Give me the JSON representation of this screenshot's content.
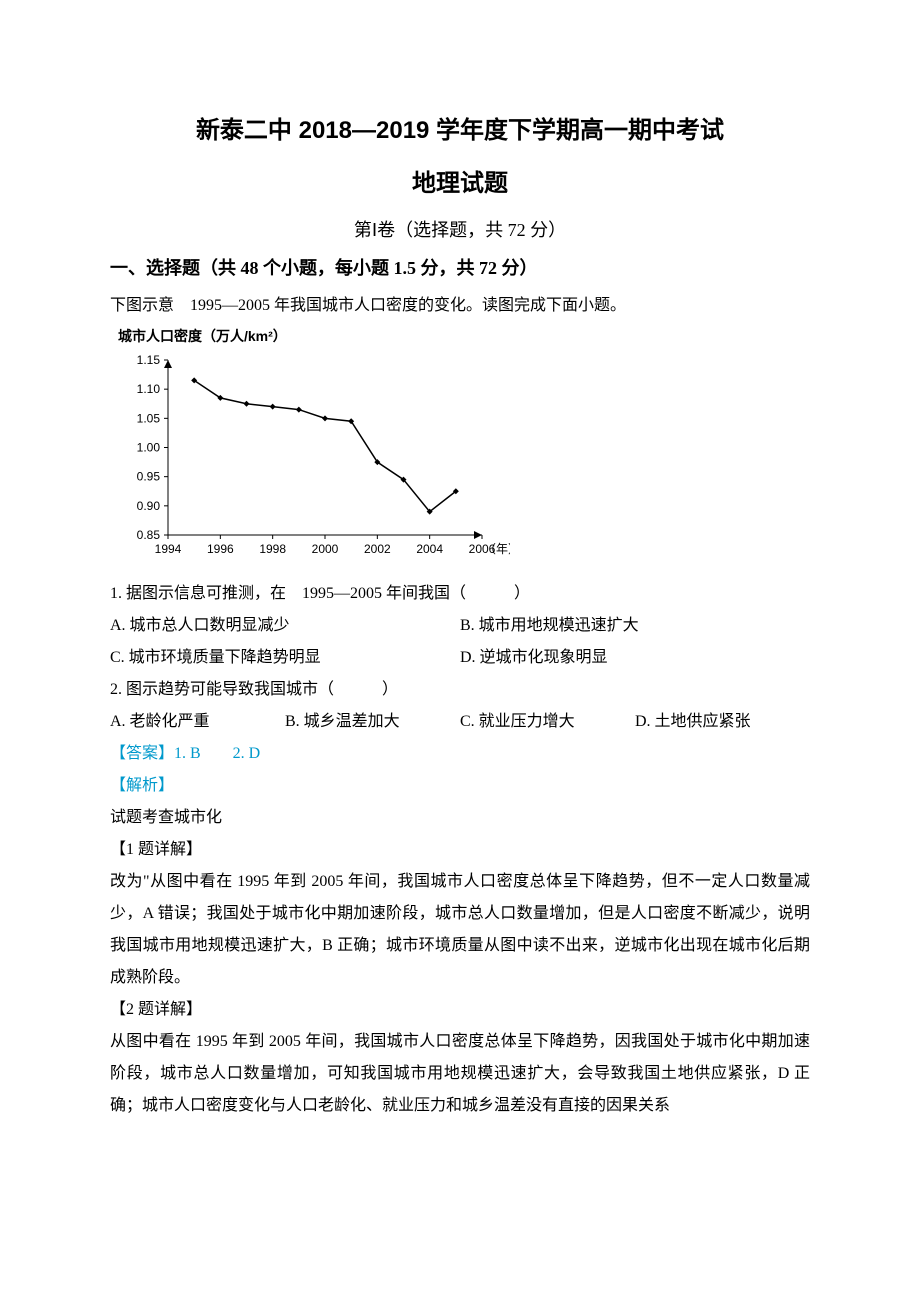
{
  "header": {
    "title_main": "新泰二中 2018—2019 学年度下学期高一期中考试",
    "title_sub": "地理试题",
    "section_header": "第Ⅰ卷（选择题，共 72 分）",
    "section_title": "一、选择题（共 48 个小题，每小题 1.5 分，共 72 分）"
  },
  "intro": "下图示意　1995—2005 年我国城市人口密度的变化。读图完成下面小题。",
  "chart": {
    "type": "line",
    "title": "城市人口密度（万人/km²）",
    "title_fontsize": 14,
    "title_color": "#000000",
    "background_color": "#ffffff",
    "axis_color": "#000000",
    "line_color": "#000000",
    "marker_style": "diamond",
    "marker_size": 6,
    "line_width": 1.5,
    "xlabel": "（年）",
    "ylabel": "",
    "x_ticks": [
      1994,
      1996,
      1998,
      2000,
      2002,
      2004,
      2006
    ],
    "y_ticks": [
      0.85,
      0.9,
      0.95,
      1.0,
      1.05,
      1.1,
      1.15
    ],
    "xlim": [
      1994,
      2006
    ],
    "ylim": [
      0.85,
      1.15
    ],
    "tick_fontsize": 12,
    "data": {
      "x": [
        1995,
        1996,
        1997,
        1998,
        1999,
        2000,
        2001,
        2002,
        2003,
        2004,
        2005
      ],
      "y": [
        1.115,
        1.085,
        1.075,
        1.07,
        1.065,
        1.05,
        1.045,
        0.975,
        0.945,
        0.89,
        0.925
      ]
    }
  },
  "q1": {
    "stem": "1. 据图示信息可推测，在　1995—2005 年间我国（　　　）",
    "A": "A. 城市总人口数明显减少",
    "B": "B. 城市用地规模迅速扩大",
    "C": "C. 城市环境质量下降趋势明显",
    "D": "D. 逆城市化现象明显"
  },
  "q2": {
    "stem": "2. 图示趋势可能导致我国城市（　　　）",
    "A": "A. 老龄化严重",
    "B": "B. 城乡温差加大",
    "C": "C. 就业压力增大",
    "D": "D. 土地供应紧张"
  },
  "answer_line": "【答案】1. B　　2. D",
  "explain_label": "【解析】",
  "topic": "试题考查城市化",
  "d1": {
    "head": "【1 题详解】",
    "body": "改为\"从图中看在 1995 年到 2005 年间，我国城市人口密度总体呈下降趋势，但不一定人口数量减少，A 错误；我国处于城市化中期加速阶段，城市总人口数量增加，但是人口密度不断减少，说明我国城市用地规模迅速扩大，B 正确；城市环境质量从图中读不出来，逆城市化出现在城市化后期成熟阶段。"
  },
  "d2": {
    "head": "【2 题详解】",
    "body": "从图中看在 1995 年到 2005 年间，我国城市人口密度总体呈下降趋势，因我国处于城市化中期加速阶段，城市总人口数量增加，可知我国城市用地规模迅速扩大，会导致我国土地供应紧张，D 正确；城市人口密度变化与人口老龄化、就业压力和城乡温差没有直接的因果关系"
  }
}
